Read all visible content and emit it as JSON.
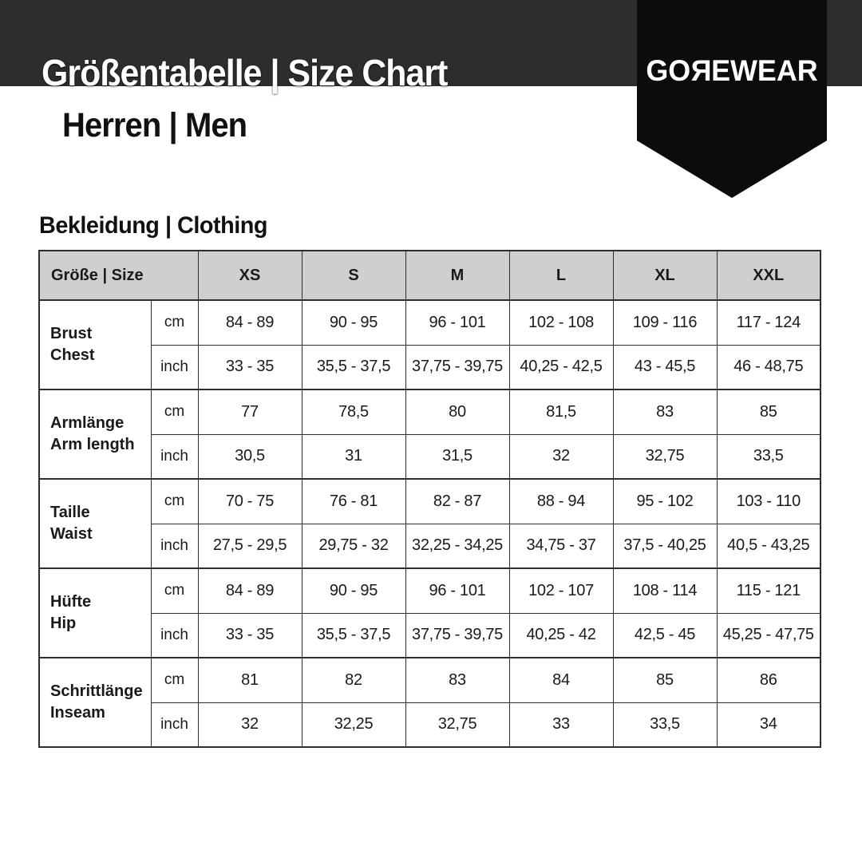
{
  "colors": {
    "banner": "#2d2d2d",
    "pennant": "#0c0c0c",
    "header-bg": "#cfcfcf",
    "border": "#2e2e2e",
    "text": "#1a1a1a"
  },
  "header": {
    "title": "Größentabelle | Size Chart",
    "subtitle": "Herren | Men",
    "brand": {
      "prefix": "GO",
      "mirrored_letter": "R",
      "suffix": "EWEAR"
    }
  },
  "section": {
    "heading": "Bekleidung | Clothing"
  },
  "table": {
    "corner_label": "Größe | Size",
    "size_columns": [
      "XS",
      "S",
      "M",
      "L",
      "XL",
      "XXL"
    ],
    "unit_labels": [
      "cm",
      "inch"
    ],
    "groups": [
      {
        "label_de": "Brust",
        "label_en": "Chest",
        "rows": [
          {
            "unit": "cm",
            "values": [
              "84 - 89",
              "90 - 95",
              "96 - 101",
              "102 - 108",
              "109 - 116",
              "117 - 124"
            ]
          },
          {
            "unit": "inch",
            "values": [
              "33 - 35",
              "35,5 - 37,5",
              "37,75 - 39,75",
              "40,25 - 42,5",
              "43 - 45,5",
              "46 - 48,75"
            ]
          }
        ]
      },
      {
        "label_de": "Armlänge",
        "label_en": "Arm length",
        "rows": [
          {
            "unit": "cm",
            "values": [
              "77",
              "78,5",
              "80",
              "81,5",
              "83",
              "85"
            ]
          },
          {
            "unit": "inch",
            "values": [
              "30,5",
              "31",
              "31,5",
              "32",
              "32,75",
              "33,5"
            ]
          }
        ]
      },
      {
        "label_de": "Taille",
        "label_en": "Waist",
        "rows": [
          {
            "unit": "cm",
            "values": [
              "70 - 75",
              "76 - 81",
              "82 - 87",
              "88 - 94",
              "95 - 102",
              "103 - 110"
            ]
          },
          {
            "unit": "inch",
            "values": [
              "27,5 - 29,5",
              "29,75 - 32",
              "32,25 - 34,25",
              "34,75 - 37",
              "37,5 - 40,25",
              "40,5 - 43,25"
            ]
          }
        ]
      },
      {
        "label_de": "Hüfte",
        "label_en": "Hip",
        "rows": [
          {
            "unit": "cm",
            "values": [
              "84 - 89",
              "90 - 95",
              "96 - 101",
              "102 - 107",
              "108 - 114",
              "115 - 121"
            ]
          },
          {
            "unit": "inch",
            "values": [
              "33 - 35",
              "35,5 - 37,5",
              "37,75 - 39,75",
              "40,25 - 42",
              "42,5 - 45",
              "45,25 - 47,75"
            ]
          }
        ]
      },
      {
        "label_de": "Schrittlänge",
        "label_en": "Inseam",
        "rows": [
          {
            "unit": "cm",
            "values": [
              "81",
              "82",
              "83",
              "84",
              "85",
              "86"
            ]
          },
          {
            "unit": "inch",
            "values": [
              "32",
              "32,25",
              "32,75",
              "33",
              "33,5",
              "34"
            ]
          }
        ]
      }
    ]
  }
}
